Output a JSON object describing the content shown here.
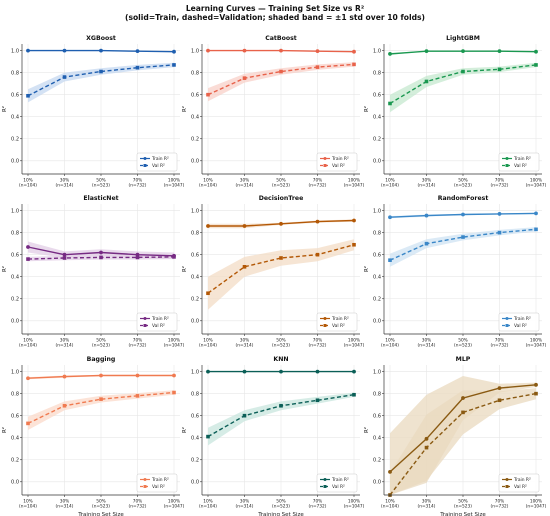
{
  "figure": {
    "title_line1": "Learning Curves — Training Set Size vs R²",
    "title_line2": "(solid=Train, dashed=Validation;  shaded band = ±1 std over 10 folds)"
  },
  "chart_data": [
    {
      "type": "line",
      "title": "XGBoost",
      "xlabel": "",
      "ylabel": "R²",
      "color": "#1f5fb0",
      "band_color": "#c6d8f0",
      "categories": [
        "10%\n(n=104)",
        "30%\n(n=314)",
        "50%\n(n=523)",
        "70%\n(n=732)",
        "100%\n(n=1047)"
      ],
      "ylim": [
        -0.12,
        1.06
      ],
      "yticks": [
        0.0,
        0.2,
        0.4,
        0.6,
        0.8,
        1.0
      ],
      "series": [
        {
          "name": "Train R²",
          "values": [
            1.0,
            1.0,
            1.0,
            0.995,
            0.99
          ],
          "std": [
            0.0,
            0.0,
            0.0,
            0.0,
            0.0
          ]
        },
        {
          "name": "Val R²",
          "values": [
            0.59,
            0.76,
            0.81,
            0.845,
            0.87
          ],
          "std": [
            0.06,
            0.04,
            0.03,
            0.025,
            0.02
          ]
        }
      ],
      "legend": "lower right"
    },
    {
      "type": "line",
      "title": "CatBoost",
      "xlabel": "",
      "ylabel": "R²",
      "color": "#e8624a",
      "band_color": "#f8d0c8",
      "categories": [
        "10%\n(n=104)",
        "30%\n(n=314)",
        "50%\n(n=523)",
        "70%\n(n=732)",
        "100%\n(n=1047)"
      ],
      "ylim": [
        -0.12,
        1.06
      ],
      "yticks": [
        0.0,
        0.2,
        0.4,
        0.6,
        0.8,
        1.0
      ],
      "series": [
        {
          "name": "Train R²",
          "values": [
            1.0,
            1.0,
            1.0,
            0.995,
            0.99
          ],
          "std": [
            0.0,
            0.0,
            0.0,
            0.0,
            0.0
          ]
        },
        {
          "name": "Val R²",
          "values": [
            0.6,
            0.75,
            0.81,
            0.85,
            0.875
          ],
          "std": [
            0.06,
            0.04,
            0.03,
            0.025,
            0.02
          ]
        }
      ],
      "legend": "lower right"
    },
    {
      "type": "line",
      "title": "LightGBM",
      "xlabel": "",
      "ylabel": "R²",
      "color": "#1a9850",
      "band_color": "#c5e8cf",
      "categories": [
        "10%\n(n=104)",
        "30%\n(n=314)",
        "50%\n(n=523)",
        "70%\n(n=732)",
        "100%\n(n=1047)"
      ],
      "ylim": [
        -0.12,
        1.06
      ],
      "yticks": [
        0.0,
        0.2,
        0.4,
        0.6,
        0.8,
        1.0
      ],
      "series": [
        {
          "name": "Train R²",
          "values": [
            0.97,
            0.995,
            0.995,
            0.995,
            0.99
          ],
          "std": [
            0.01,
            0.0,
            0.0,
            0.0,
            0.0
          ]
        },
        {
          "name": "Val R²",
          "values": [
            0.52,
            0.72,
            0.81,
            0.83,
            0.87
          ],
          "std": [
            0.08,
            0.05,
            0.03,
            0.025,
            0.02
          ]
        }
      ],
      "legend": "lower right"
    },
    {
      "type": "line",
      "title": "ElasticNet",
      "xlabel": "",
      "ylabel": "R²",
      "color": "#762a83",
      "band_color": "#e1cde6",
      "categories": [
        "10%\n(n=104)",
        "30%\n(n=314)",
        "50%\n(n=523)",
        "70%\n(n=732)",
        "100%\n(n=1047)"
      ],
      "ylim": [
        -0.12,
        1.06
      ],
      "yticks": [
        0.0,
        0.2,
        0.4,
        0.6,
        0.8,
        1.0
      ],
      "series": [
        {
          "name": "Train R²",
          "values": [
            0.67,
            0.6,
            0.62,
            0.6,
            0.59
          ],
          "std": [
            0.05,
            0.03,
            0.03,
            0.03,
            0.03
          ]
        },
        {
          "name": "Val R²",
          "values": [
            0.56,
            0.57,
            0.575,
            0.575,
            0.58
          ],
          "std": [
            0.02,
            0.02,
            0.02,
            0.02,
            0.02
          ]
        }
      ],
      "legend": "lower right"
    },
    {
      "type": "line",
      "title": "DecisionTree",
      "xlabel": "",
      "ylabel": "R²",
      "color": "#b35806",
      "band_color": "#f3dcc5",
      "categories": [
        "10%\n(n=104)",
        "30%\n(n=314)",
        "50%\n(n=523)",
        "70%\n(n=732)",
        "100%\n(n=1047)"
      ],
      "ylim": [
        -0.12,
        1.06
      ],
      "yticks": [
        0.0,
        0.2,
        0.4,
        0.6,
        0.8,
        1.0
      ],
      "series": [
        {
          "name": "Train R²",
          "values": [
            0.86,
            0.86,
            0.88,
            0.9,
            0.91
          ],
          "std": [
            0.02,
            0.02,
            0.01,
            0.01,
            0.01
          ]
        },
        {
          "name": "Val R²",
          "values": [
            0.25,
            0.49,
            0.57,
            0.6,
            0.69
          ],
          "std": [
            0.15,
            0.09,
            0.07,
            0.06,
            0.05
          ]
        }
      ],
      "legend": "lower right"
    },
    {
      "type": "line",
      "title": "RandomForest",
      "xlabel": "",
      "ylabel": "R²",
      "color": "#3a87c8",
      "band_color": "#cfe3f3",
      "categories": [
        "10%\n(n=104)",
        "30%\n(n=314)",
        "50%\n(n=523)",
        "70%\n(n=732)",
        "100%\n(n=1047)"
      ],
      "ylim": [
        -0.12,
        1.06
      ],
      "yticks": [
        0.0,
        0.2,
        0.4,
        0.6,
        0.8,
        1.0
      ],
      "series": [
        {
          "name": "Train R²",
          "values": [
            0.94,
            0.955,
            0.965,
            0.97,
            0.975
          ],
          "std": [
            0.01,
            0.01,
            0.005,
            0.005,
            0.005
          ]
        },
        {
          "name": "Val R²",
          "values": [
            0.55,
            0.7,
            0.76,
            0.8,
            0.83
          ],
          "std": [
            0.06,
            0.04,
            0.03,
            0.025,
            0.02
          ]
        }
      ],
      "legend": "lower right"
    },
    {
      "type": "line",
      "title": "Bagging",
      "xlabel": "Training Set Size",
      "ylabel": "R²",
      "color": "#f07a50",
      "band_color": "#fbd9ca",
      "categories": [
        "10%\n(n=104)",
        "30%\n(n=314)",
        "50%\n(n=523)",
        "70%\n(n=732)",
        "100%\n(n=1047)"
      ],
      "ylim": [
        -0.12,
        1.06
      ],
      "yticks": [
        0.0,
        0.2,
        0.4,
        0.6,
        0.8,
        1.0
      ],
      "series": [
        {
          "name": "Train R²",
          "values": [
            0.94,
            0.955,
            0.965,
            0.965,
            0.965
          ],
          "std": [
            0.01,
            0.01,
            0.005,
            0.005,
            0.005
          ]
        },
        {
          "name": "Val R²",
          "values": [
            0.53,
            0.69,
            0.75,
            0.78,
            0.81
          ],
          "std": [
            0.06,
            0.04,
            0.03,
            0.025,
            0.02
          ]
        }
      ],
      "legend": "lower right"
    },
    {
      "type": "line",
      "title": "KNN",
      "xlabel": "Training Set Size",
      "ylabel": "R²",
      "color": "#0b5f57",
      "band_color": "#c8e6de",
      "categories": [
        "10%\n(n=104)",
        "30%\n(n=314)",
        "50%\n(n=523)",
        "70%\n(n=732)",
        "100%\n(n=1047)"
      ],
      "ylim": [
        -0.12,
        1.06
      ],
      "yticks": [
        0.0,
        0.2,
        0.4,
        0.6,
        0.8,
        1.0
      ],
      "series": [
        {
          "name": "Train R²",
          "values": [
            1.0,
            1.0,
            1.0,
            1.0,
            1.0
          ],
          "std": [
            0.0,
            0.0,
            0.0,
            0.0,
            0.0
          ]
        },
        {
          "name": "Val R²",
          "values": [
            0.41,
            0.6,
            0.69,
            0.74,
            0.79
          ],
          "std": [
            0.08,
            0.05,
            0.04,
            0.03,
            0.02
          ]
        }
      ],
      "legend": "lower right"
    },
    {
      "type": "line",
      "title": "MLP",
      "xlabel": "Training Set Size",
      "ylabel": "R²",
      "color": "#8a5a12",
      "band_color": "#e9d9bf",
      "categories": [
        "10%\n(n=104)",
        "30%\n(n=314)",
        "50%\n(n=523)",
        "70%\n(n=732)",
        "100%\n(n=1047)"
      ],
      "ylim": [
        -0.12,
        1.06
      ],
      "yticks": [
        0.0,
        0.2,
        0.4,
        0.6,
        0.8,
        1.0
      ],
      "series": [
        {
          "name": "Train R²",
          "values": [
            0.09,
            0.39,
            0.76,
            0.85,
            0.88
          ],
          "std": [
            0.35,
            0.4,
            0.2,
            0.04,
            0.02
          ]
        },
        {
          "name": "Val R²",
          "values": [
            -0.12,
            0.31,
            0.63,
            0.74,
            0.8
          ],
          "std": [
            0.2,
            0.3,
            0.2,
            0.08,
            0.05
          ]
        }
      ],
      "legend": "lower right"
    }
  ]
}
